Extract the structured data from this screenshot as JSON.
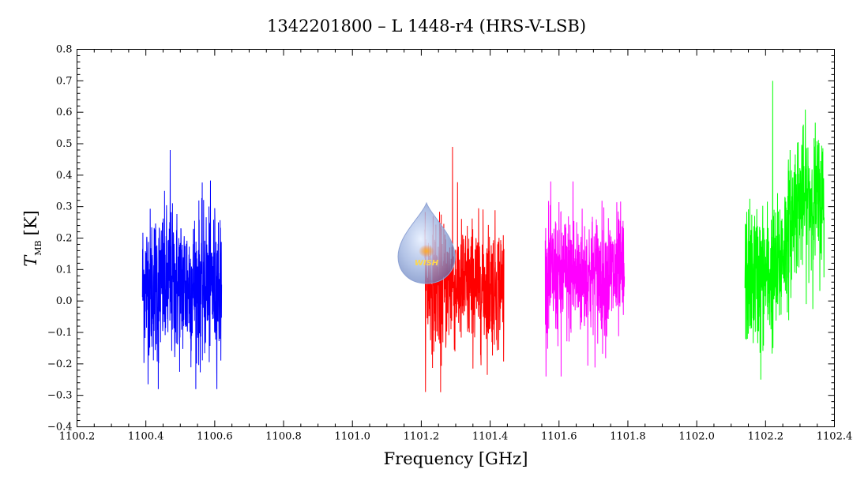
{
  "chart_data": {
    "type": "line",
    "title": "1342201800 – L 1448-r4 (HRS-V-LSB)",
    "xlabel": "Frequency [GHz]",
    "ylabel_main": "T",
    "ylabel_sub": "MB",
    "ylabel_unit": "[K]",
    "xlim": [
      1100.2,
      1102.4
    ],
    "ylim": [
      -0.4,
      0.8
    ],
    "x_ticks": [
      "1100.2",
      "1100.4",
      "1100.6",
      "1100.8",
      "1101.0",
      "1101.2",
      "1101.4",
      "1101.6",
      "1101.8",
      "1102.0",
      "1102.2",
      "1102.4"
    ],
    "y_ticks": [
      "−0.4",
      "−0.3",
      "−0.2",
      "−0.1",
      "0.0",
      "0.1",
      "0.2",
      "0.3",
      "0.4",
      "0.5",
      "0.6",
      "0.7",
      "0.8"
    ],
    "grid": false,
    "series": [
      {
        "color": "#0000ff",
        "x_range": [
          1100.39,
          1100.62
        ],
        "baseline": 0.05,
        "spread": 0.12,
        "max": 0.48,
        "min": -0.28
      },
      {
        "color": "#ff0000",
        "x_range": [
          1101.21,
          1101.44
        ],
        "baseline": 0.05,
        "spread": 0.1,
        "max": 0.49,
        "min": -0.29
      },
      {
        "color": "#ff00ff",
        "x_range": [
          1101.56,
          1101.79
        ],
        "baseline": 0.08,
        "spread": 0.1,
        "max": 0.38,
        "min": -0.24
      },
      {
        "color": "#00ff00",
        "x_range": [
          1102.14,
          1102.37
        ],
        "baseline_start": 0.08,
        "baseline_end": 0.32,
        "spread": 0.11,
        "max": 0.7,
        "min": -0.25
      }
    ]
  },
  "logo": {
    "text": "WISH"
  }
}
